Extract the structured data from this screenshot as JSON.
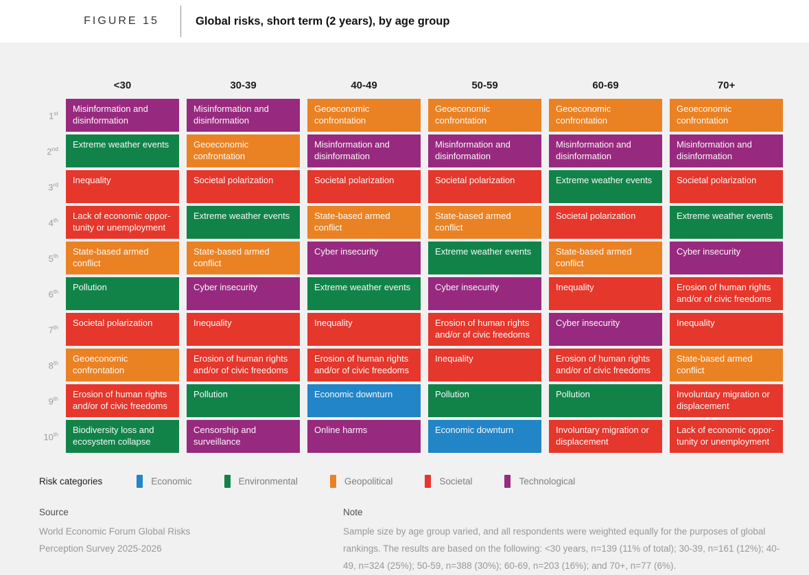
{
  "header": {
    "figure_label": "FIGURE 15",
    "title": "Global risks, short term (2 years), by age group"
  },
  "chart_data": {
    "type": "table",
    "title": "Global risks, short term (2 years), by age group",
    "figure_label": "FIGURE 15",
    "columns": [
      "<30",
      "30-39",
      "40-49",
      "50-59",
      "60-69",
      "70+"
    ],
    "ranks": [
      {
        "num": "1",
        "suffix": "st"
      },
      {
        "num": "2",
        "suffix": "nd"
      },
      {
        "num": "3",
        "suffix": "rd"
      },
      {
        "num": "4",
        "suffix": "th"
      },
      {
        "num": "5",
        "suffix": "th"
      },
      {
        "num": "6",
        "suffix": "th"
      },
      {
        "num": "7",
        "suffix": "th"
      },
      {
        "num": "8",
        "suffix": "th"
      },
      {
        "num": "9",
        "suffix": "th"
      },
      {
        "num": "10",
        "suffix": "th"
      }
    ],
    "cells": [
      [
        {
          "label": "Misinformation and disinformation",
          "category": "technological"
        },
        {
          "label": "Misinformation and disinformation",
          "category": "technological"
        },
        {
          "label": "Geoeconomic confrontation",
          "category": "geopolitical"
        },
        {
          "label": "Geoeconomic confrontation",
          "category": "geopolitical"
        },
        {
          "label": "Geoeconomic confrontation",
          "category": "geopolitical"
        },
        {
          "label": "Geoeconomic confrontation",
          "category": "geopolitical"
        }
      ],
      [
        {
          "label": "Extreme weather events",
          "category": "environmental"
        },
        {
          "label": "Geoeconomic confrontation",
          "category": "geopolitical"
        },
        {
          "label": "Misinformation and disinformation",
          "category": "technological"
        },
        {
          "label": "Misinformation and disinformation",
          "category": "technological"
        },
        {
          "label": "Misinformation and disinformation",
          "category": "technological"
        },
        {
          "label": "Misinformation and disinformation",
          "category": "technological"
        }
      ],
      [
        {
          "label": "Inequality",
          "category": "societal"
        },
        {
          "label": "Societal polarization",
          "category": "societal"
        },
        {
          "label": "Societal polarization",
          "category": "societal"
        },
        {
          "label": "Societal polarization",
          "category": "societal"
        },
        {
          "label": "Extreme weather events",
          "category": "environmental"
        },
        {
          "label": "Societal polarization",
          "category": "societal"
        }
      ],
      [
        {
          "label": "Lack of economic opportunity or unemployment",
          "category": "societal",
          "display": "Lack of economic oppor-\ntunity or unemployment"
        },
        {
          "label": "Extreme weather events",
          "category": "environmental"
        },
        {
          "label": "State-based armed conflict",
          "category": "geopolitical"
        },
        {
          "label": "State-based armed conflict",
          "category": "geopolitical"
        },
        {
          "label": "Societal polarization",
          "category": "societal"
        },
        {
          "label": "Extreme weather events",
          "category": "environmental"
        }
      ],
      [
        {
          "label": "State-based armed conflict",
          "category": "geopolitical"
        },
        {
          "label": "State-based armed conflict",
          "category": "geopolitical"
        },
        {
          "label": "Cyber insecurity",
          "category": "technological"
        },
        {
          "label": "Extreme weather events",
          "category": "environmental"
        },
        {
          "label": "State-based armed conflict",
          "category": "geopolitical"
        },
        {
          "label": "Cyber insecurity",
          "category": "technological"
        }
      ],
      [
        {
          "label": "Pollution",
          "category": "environmental"
        },
        {
          "label": "Cyber insecurity",
          "category": "technological"
        },
        {
          "label": "Extreme weather events",
          "category": "environmental"
        },
        {
          "label": "Cyber insecurity",
          "category": "technological"
        },
        {
          "label": "Inequality",
          "category": "societal"
        },
        {
          "label": "Erosion of human rights and/or of civic freedoms",
          "category": "societal"
        }
      ],
      [
        {
          "label": "Societal polarization",
          "category": "societal"
        },
        {
          "label": "Inequality",
          "category": "societal"
        },
        {
          "label": "Inequality",
          "category": "societal"
        },
        {
          "label": "Erosion of human rights and/or of civic freedoms",
          "category": "societal"
        },
        {
          "label": "Cyber insecurity",
          "category": "technological"
        },
        {
          "label": "Inequality",
          "category": "societal"
        }
      ],
      [
        {
          "label": "Geoeconomic confrontation",
          "category": "geopolitical"
        },
        {
          "label": "Erosion of human rights and/or of civic freedoms",
          "category": "societal"
        },
        {
          "label": "Erosion of human rights and/or of civic freedoms",
          "category": "societal"
        },
        {
          "label": "Inequality",
          "category": "societal"
        },
        {
          "label": "Erosion of human rights and/or of civic freedoms",
          "category": "societal"
        },
        {
          "label": "State-based armed conflict",
          "category": "geopolitical"
        }
      ],
      [
        {
          "label": "Erosion of human rights and/or of civic freedoms",
          "category": "societal"
        },
        {
          "label": "Pollution",
          "category": "environmental"
        },
        {
          "label": "Economic downturn",
          "category": "economic"
        },
        {
          "label": "Pollution",
          "category": "environmental"
        },
        {
          "label": "Pollution",
          "category": "environmental"
        },
        {
          "label": "Involuntary migration or displacement",
          "category": "societal"
        }
      ],
      [
        {
          "label": "Biodiversity loss and ecosystem collapse",
          "category": "environmental"
        },
        {
          "label": "Censorship and surveillance",
          "category": "technological"
        },
        {
          "label": "Online harms",
          "category": "technological"
        },
        {
          "label": "Economic downturn",
          "category": "economic"
        },
        {
          "label": "Involuntary migration or displacement",
          "category": "societal"
        },
        {
          "label": "Lack of economic opportunity or unemployment",
          "category": "societal",
          "display": "Lack of economic oppor-\ntunity or unemployment"
        }
      ]
    ],
    "legend_position": "bottom",
    "legend": [
      "Economic",
      "Environmental",
      "Geopolitical",
      "Societal",
      "Technological"
    ]
  },
  "legend": {
    "title": "Risk categories",
    "items": [
      {
        "label": "Economic",
        "category": "economic"
      },
      {
        "label": "Environmental",
        "category": "environmental"
      },
      {
        "label": "Geopolitical",
        "category": "geopolitical"
      },
      {
        "label": "Societal",
        "category": "societal"
      },
      {
        "label": "Technological",
        "category": "technological"
      }
    ]
  },
  "colors": {
    "economic": "#2185C7",
    "environmental": "#118349",
    "geopolitical": "#EA8224",
    "societal": "#E5372C",
    "technological": "#972A7F",
    "background": "#F1F1F2"
  },
  "footer": {
    "source_heading": "Source",
    "source_lines": [
      "World Economic Forum Global Risks",
      "Perception Survey 2025-2026"
    ],
    "note_heading": "Note",
    "note_text": "Sample size by age group varied, and all respondents were weighted equally for the purposes of global rankings. The results are based on the following: <30 years, n=139 (11% of total); 30-39, n=161 (12%); 40-49, n=324 (25%); 50-59, n=388 (30%); 60-69, n=203 (16%); and 70+, n=77 (6%)."
  }
}
